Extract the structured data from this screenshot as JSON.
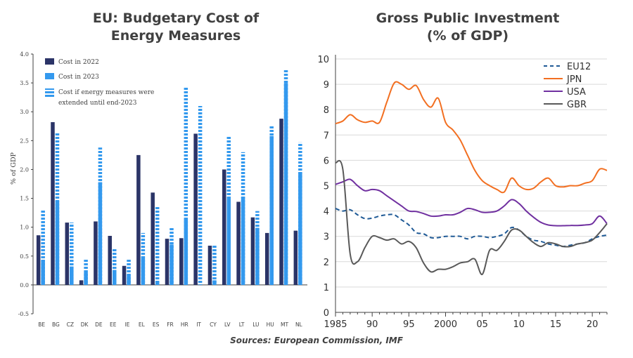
{
  "chart_data": [
    {
      "type": "bar",
      "title": "EU: Budgetary Cost of Energy Measures",
      "title_lines": [
        "EU: Budgetary Cost of",
        "Energy Measures"
      ],
      "ylabel": "% of GDP",
      "ylim": [
        -0.5,
        4.0
      ],
      "yticks": [
        "-0.5",
        "0.0",
        "0.5",
        "1.0",
        "1.5",
        "2.0",
        "2.5",
        "3.0",
        "3.5",
        "4.0"
      ],
      "ytick_values": [
        -0.5,
        0.0,
        0.5,
        1.0,
        1.5,
        2.0,
        2.5,
        3.0,
        3.5,
        4.0
      ],
      "categories": [
        "BE",
        "BG",
        "CZ",
        "DK",
        "DE",
        "EE",
        "IE",
        "EL",
        "ES",
        "FR",
        "HR",
        "IT",
        "CY",
        "LV",
        "LT",
        "LU",
        "HU",
        "MT",
        "NL"
      ],
      "series": [
        {
          "name": "Cost in 2022",
          "color": "#2b3467",
          "values": [
            0.86,
            2.82,
            1.08,
            0.08,
            1.1,
            0.85,
            0.33,
            2.25,
            1.6,
            0.8,
            0.81,
            2.62,
            0.68,
            2.0,
            1.44,
            1.17,
            0.9,
            2.88,
            0.94
          ]
        },
        {
          "name": "Cost in 2023",
          "color": "#3399ee",
          "values": [
            0.42,
            1.45,
            0.32,
            0.22,
            1.78,
            0.26,
            0.17,
            0.47,
            0.05,
            0.7,
            1.14,
            0.0,
            0.08,
            1.52,
            1.52,
            0.99,
            2.58,
            3.5,
            1.94
          ]
        },
        {
          "name": "Cost if energy measures were extended until end-2023",
          "color": "#3399ee",
          "pattern": "dashed",
          "values": [
            1.3,
            2.65,
            1.08,
            0.45,
            2.38,
            0.62,
            0.45,
            0.9,
            1.37,
            1.0,
            3.43,
            3.1,
            0.69,
            2.58,
            2.3,
            1.28,
            2.75,
            3.74,
            2.47
          ]
        }
      ],
      "legend": [
        "Cost in 2022",
        "Cost in 2023",
        "Cost if energy measures were",
        "extended until end-2023"
      ]
    },
    {
      "type": "line",
      "title": "Gross Public Investment (% of GDP)",
      "title_lines": [
        "Gross Public Investment",
        "(% of GDP)"
      ],
      "xlim": [
        1985,
        2022
      ],
      "ylim": [
        0,
        10
      ],
      "xticks": [
        "1985",
        "90",
        "95",
        "2000",
        "05",
        "10",
        "15",
        "20"
      ],
      "xtick_values": [
        1985,
        1990,
        1995,
        2000,
        2005,
        2010,
        2015,
        2020
      ],
      "yticks": [
        "0",
        "1",
        "2",
        "3",
        "4",
        "5",
        "6",
        "7",
        "8",
        "9",
        "10"
      ],
      "legend_position": "top-right",
      "series": [
        {
          "name": "EU12",
          "color": "#1f5a96",
          "style": "dashed",
          "x": [
            1985,
            1986,
            1987,
            1988,
            1989,
            1990,
            1991,
            1992,
            1993,
            1994,
            1995,
            1996,
            1997,
            1998,
            1999,
            2000,
            2001,
            2002,
            2003,
            2004,
            2005,
            2006,
            2007,
            2008,
            2009,
            2010,
            2011,
            2012,
            2013,
            2014,
            2015,
            2016,
            2017,
            2018,
            2019,
            2020,
            2021,
            2022
          ],
          "y": [
            4.1,
            4.0,
            4.05,
            3.85,
            3.7,
            3.72,
            3.8,
            3.85,
            3.85,
            3.65,
            3.45,
            3.15,
            3.1,
            2.95,
            2.95,
            3.0,
            3.0,
            3.0,
            2.9,
            3.0,
            3.0,
            2.95,
            3.0,
            3.1,
            3.35,
            3.25,
            3.0,
            2.85,
            2.8,
            2.7,
            2.65,
            2.6,
            2.65,
            2.7,
            2.75,
            2.9,
            3.0,
            3.05
          ]
        },
        {
          "name": "JPN",
          "color": "#f26f21",
          "style": "solid",
          "x": [
            1985,
            1986,
            1987,
            1988,
            1989,
            1990,
            1991,
            1992,
            1993,
            1994,
            1995,
            1996,
            1997,
            1998,
            1999,
            2000,
            2001,
            2002,
            2003,
            2004,
            2005,
            2006,
            2007,
            2008,
            2009,
            2010,
            2011,
            2012,
            2013,
            2014,
            2015,
            2016,
            2017,
            2018,
            2019,
            2020,
            2021,
            2022
          ],
          "y": [
            7.45,
            7.55,
            7.8,
            7.6,
            7.5,
            7.55,
            7.5,
            8.3,
            9.05,
            9.0,
            8.8,
            8.95,
            8.4,
            8.1,
            8.45,
            7.5,
            7.2,
            6.8,
            6.2,
            5.6,
            5.2,
            5.0,
            4.85,
            4.75,
            5.3,
            5.0,
            4.85,
            4.9,
            5.15,
            5.3,
            5.0,
            4.95,
            5.0,
            5.0,
            5.1,
            5.2,
            5.65,
            5.6
          ]
        },
        {
          "name": "USA",
          "color": "#7030a0",
          "style": "solid",
          "x": [
            1985,
            1986,
            1987,
            1988,
            1989,
            1990,
            1991,
            1992,
            1993,
            1994,
            1995,
            1996,
            1997,
            1998,
            1999,
            2000,
            2001,
            2002,
            2003,
            2004,
            2005,
            2006,
            2007,
            2008,
            2009,
            2010,
            2011,
            2012,
            2013,
            2014,
            2015,
            2016,
            2017,
            2018,
            2019,
            2020,
            2021,
            2022
          ],
          "y": [
            5.05,
            5.15,
            5.25,
            5.0,
            4.8,
            4.85,
            4.8,
            4.6,
            4.4,
            4.2,
            4.0,
            3.98,
            3.9,
            3.8,
            3.8,
            3.85,
            3.85,
            3.95,
            4.1,
            4.05,
            3.95,
            3.95,
            4.0,
            4.2,
            4.45,
            4.3,
            4.0,
            3.75,
            3.55,
            3.45,
            3.42,
            3.42,
            3.43,
            3.43,
            3.45,
            3.5,
            3.8,
            3.5
          ]
        },
        {
          "name": "GBR",
          "color": "#595959",
          "style": "solid",
          "x": [
            1985,
            1986,
            1987,
            1988,
            1989,
            1990,
            1991,
            1992,
            1993,
            1994,
            1995,
            1996,
            1997,
            1998,
            1999,
            2000,
            2001,
            2002,
            2003,
            2004,
            2005,
            2006,
            2007,
            2008,
            2009,
            2010,
            2011,
            2012,
            2013,
            2014,
            2015,
            2016,
            2017,
            2018,
            2019,
            2020,
            2021,
            2022
          ],
          "y": [
            5.9,
            5.65,
            2.3,
            2.0,
            2.55,
            3.0,
            2.95,
            2.85,
            2.9,
            2.7,
            2.8,
            2.55,
            1.95,
            1.6,
            1.7,
            1.7,
            1.8,
            1.95,
            2.0,
            2.1,
            1.5,
            2.45,
            2.45,
            2.8,
            3.25,
            3.25,
            3.0,
            2.75,
            2.6,
            2.75,
            2.7,
            2.6,
            2.6,
            2.7,
            2.75,
            2.85,
            3.15,
            3.5
          ]
        }
      ]
    }
  ],
  "source": "Sources: European Commission, IMF"
}
